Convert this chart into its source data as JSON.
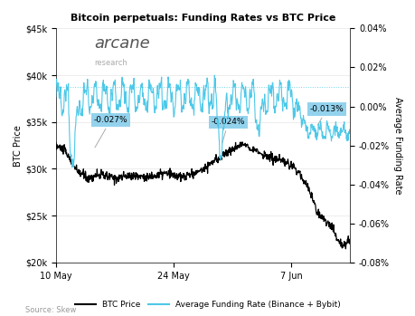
{
  "title": "Bitcoin perpetuals: Funding Rates vs BTC Price",
  "xlabel_ticks": [
    "10 May",
    "24 May",
    "7 Jun"
  ],
  "ylabel_left": "BTC Price",
  "ylabel_right": "Average Funding Rate",
  "source": "Source: Skew",
  "legend_labels": [
    "BTC Price",
    "Average Funding Rate (Binance + Bybit)"
  ],
  "btc_color": "#000000",
  "funding_color": "#4dc8e8",
  "background_color": "#ffffff",
  "annotation1": "-0.027%",
  "annotation2": "-0.024%",
  "annotation3": "-0.013%",
  "annotation_bg": "#87CEEB",
  "annotation_text_color": "#000000",
  "left_ylim": [
    20000,
    45000
  ],
  "right_ylim": [
    -0.0008,
    0.0004
  ],
  "dotted_line_y": 0.0001,
  "logo_text_arcane": "arcane",
  "logo_text_research": "research",
  "left_yticks": [
    20000,
    25000,
    30000,
    35000,
    40000,
    45000
  ],
  "left_yticklabels": [
    "$20k",
    "$25k",
    "$30k",
    "$35k",
    "$40k",
    "$45k"
  ],
  "right_yticks": [
    -0.0008,
    -0.0006,
    -0.0004,
    -0.0002,
    0.0,
    0.0002,
    0.0004
  ],
  "right_yticklabels": [
    "-0.08%",
    "-0.06%",
    "-0.04%",
    "-0.02%",
    "0.00%",
    "0.02%",
    "0.04%"
  ]
}
